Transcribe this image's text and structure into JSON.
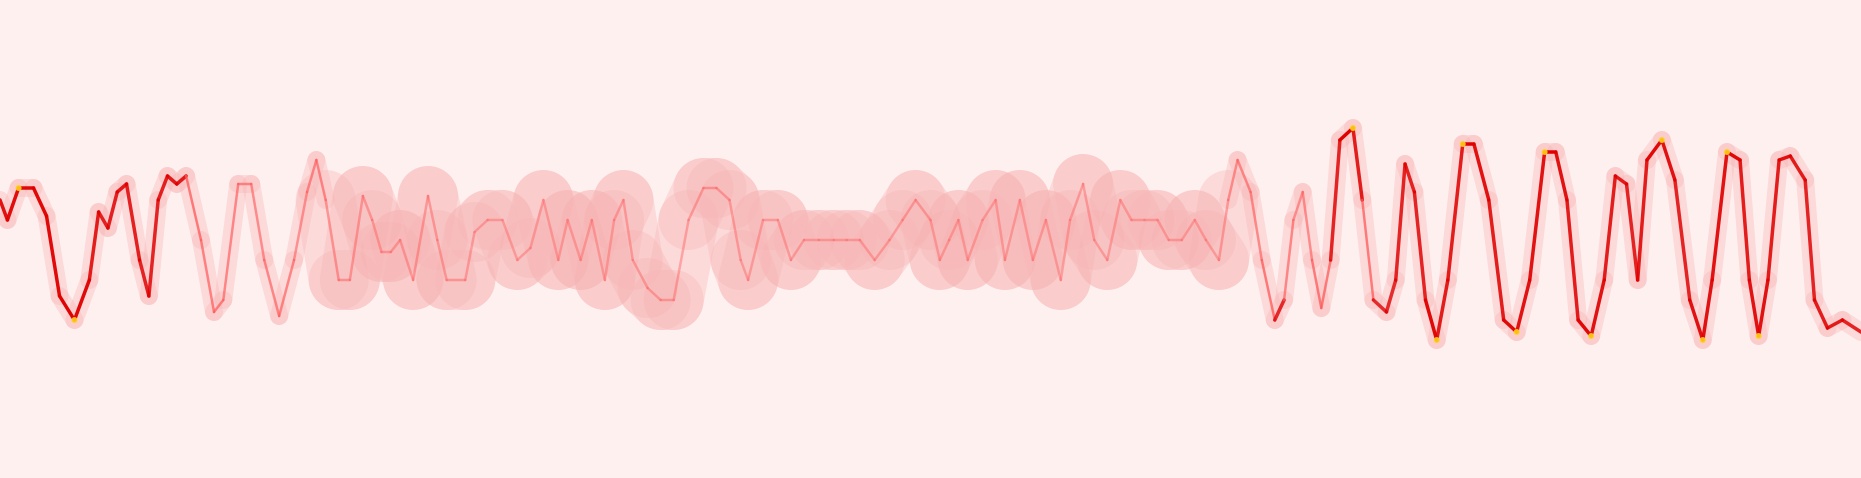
{
  "chart_data": {
    "type": "heatmap",
    "title": "",
    "xlabel": "",
    "ylabel": "",
    "axes": "none",
    "grid": false,
    "legend": "none",
    "colors": {
      "background": "#fff0f0",
      "faint": "#f7b3b3",
      "mid": "#ff5a5a",
      "strong": "#e00000",
      "peak": "#ffd21a"
    },
    "xlim": [
      0,
      1
    ],
    "ylim": [
      0,
      1
    ],
    "trace": [
      [
        0.0,
        0.6,
        0.9
      ],
      [
        0.004,
        0.55,
        0.9
      ],
      [
        0.01,
        0.63,
        0.95
      ],
      [
        0.018,
        0.63,
        0.95
      ],
      [
        0.025,
        0.56,
        0.95
      ],
      [
        0.032,
        0.36,
        0.95
      ],
      [
        0.04,
        0.3,
        1.0
      ],
      [
        0.048,
        0.4,
        0.9
      ],
      [
        0.053,
        0.57,
        0.8
      ],
      [
        0.058,
        0.53,
        0.8
      ],
      [
        0.063,
        0.62,
        0.85
      ],
      [
        0.068,
        0.64,
        0.85
      ],
      [
        0.075,
        0.45,
        0.8
      ],
      [
        0.08,
        0.36,
        0.8
      ],
      [
        0.085,
        0.6,
        0.8
      ],
      [
        0.09,
        0.66,
        0.85
      ],
      [
        0.095,
        0.64,
        0.85
      ],
      [
        0.1,
        0.66,
        0.85
      ],
      [
        0.108,
        0.5,
        0.6
      ],
      [
        0.115,
        0.32,
        0.7
      ],
      [
        0.12,
        0.35,
        0.6
      ],
      [
        0.128,
        0.64,
        0.6
      ],
      [
        0.135,
        0.64,
        0.6
      ],
      [
        0.142,
        0.45,
        0.5
      ],
      [
        0.15,
        0.31,
        0.7
      ],
      [
        0.158,
        0.45,
        0.5
      ],
      [
        0.165,
        0.62,
        0.5
      ],
      [
        0.17,
        0.7,
        0.7
      ],
      [
        0.175,
        0.6,
        0.5
      ],
      [
        0.182,
        0.4,
        0.4
      ],
      [
        0.188,
        0.4,
        0.4
      ],
      [
        0.195,
        0.61,
        0.4
      ],
      [
        0.2,
        0.55,
        0.35
      ],
      [
        0.205,
        0.47,
        0.35
      ],
      [
        0.21,
        0.47,
        0.35
      ],
      [
        0.215,
        0.5,
        0.35
      ],
      [
        0.222,
        0.4,
        0.35
      ],
      [
        0.23,
        0.61,
        0.4
      ],
      [
        0.235,
        0.5,
        0.35
      ],
      [
        0.24,
        0.4,
        0.35
      ],
      [
        0.25,
        0.4,
        0.35
      ],
      [
        0.255,
        0.52,
        0.3
      ],
      [
        0.262,
        0.55,
        0.3
      ],
      [
        0.27,
        0.55,
        0.3
      ],
      [
        0.278,
        0.45,
        0.3
      ],
      [
        0.285,
        0.48,
        0.3
      ],
      [
        0.292,
        0.6,
        0.3
      ],
      [
        0.3,
        0.45,
        0.3
      ],
      [
        0.305,
        0.55,
        0.3
      ],
      [
        0.312,
        0.45,
        0.3
      ],
      [
        0.318,
        0.55,
        0.3
      ],
      [
        0.325,
        0.4,
        0.3
      ],
      [
        0.33,
        0.55,
        0.3
      ],
      [
        0.335,
        0.6,
        0.35
      ],
      [
        0.34,
        0.45,
        0.3
      ],
      [
        0.348,
        0.38,
        0.35
      ],
      [
        0.355,
        0.35,
        0.35
      ],
      [
        0.362,
        0.35,
        0.35
      ],
      [
        0.37,
        0.55,
        0.3
      ],
      [
        0.378,
        0.63,
        0.4
      ],
      [
        0.385,
        0.63,
        0.4
      ],
      [
        0.392,
        0.6,
        0.35
      ],
      [
        0.398,
        0.45,
        0.3
      ],
      [
        0.402,
        0.4,
        0.3
      ],
      [
        0.41,
        0.55,
        0.3
      ],
      [
        0.418,
        0.55,
        0.3
      ],
      [
        0.425,
        0.45,
        0.3
      ],
      [
        0.432,
        0.5,
        0.3
      ],
      [
        0.44,
        0.5,
        0.3
      ],
      [
        0.448,
        0.5,
        0.3
      ],
      [
        0.455,
        0.5,
        0.3
      ],
      [
        0.462,
        0.5,
        0.3
      ],
      [
        0.47,
        0.45,
        0.3
      ],
      [
        0.478,
        0.5,
        0.3
      ],
      [
        0.485,
        0.55,
        0.3
      ],
      [
        0.492,
        0.6,
        0.4
      ],
      [
        0.5,
        0.55,
        0.3
      ],
      [
        0.505,
        0.45,
        0.3
      ],
      [
        0.51,
        0.5,
        0.3
      ],
      [
        0.515,
        0.55,
        0.3
      ],
      [
        0.52,
        0.45,
        0.3
      ],
      [
        0.528,
        0.55,
        0.3
      ],
      [
        0.535,
        0.6,
        0.3
      ],
      [
        0.54,
        0.45,
        0.3
      ],
      [
        0.548,
        0.6,
        0.3
      ],
      [
        0.555,
        0.45,
        0.3
      ],
      [
        0.562,
        0.55,
        0.3
      ],
      [
        0.57,
        0.4,
        0.3
      ],
      [
        0.575,
        0.55,
        0.3
      ],
      [
        0.582,
        0.64,
        0.35
      ],
      [
        0.588,
        0.5,
        0.3
      ],
      [
        0.595,
        0.45,
        0.3
      ],
      [
        0.602,
        0.6,
        0.3
      ],
      [
        0.608,
        0.55,
        0.3
      ],
      [
        0.615,
        0.55,
        0.3
      ],
      [
        0.622,
        0.55,
        0.3
      ],
      [
        0.628,
        0.5,
        0.3
      ],
      [
        0.635,
        0.5,
        0.3
      ],
      [
        0.642,
        0.55,
        0.3
      ],
      [
        0.648,
        0.5,
        0.3
      ],
      [
        0.655,
        0.45,
        0.3
      ],
      [
        0.66,
        0.6,
        0.45
      ],
      [
        0.665,
        0.7,
        0.6
      ],
      [
        0.672,
        0.62,
        0.55
      ],
      [
        0.678,
        0.45,
        0.6
      ],
      [
        0.685,
        0.3,
        0.85
      ],
      [
        0.69,
        0.35,
        0.7
      ],
      [
        0.695,
        0.55,
        0.5
      ],
      [
        0.7,
        0.62,
        0.5
      ],
      [
        0.705,
        0.45,
        0.6
      ],
      [
        0.71,
        0.33,
        0.8
      ],
      [
        0.715,
        0.45,
        0.6
      ],
      [
        0.72,
        0.75,
        1.0
      ],
      [
        0.727,
        0.78,
        1.0
      ],
      [
        0.732,
        0.6,
        0.7
      ],
      [
        0.738,
        0.35,
        0.7
      ],
      [
        0.745,
        0.32,
        0.8
      ],
      [
        0.75,
        0.4,
        0.7
      ],
      [
        0.755,
        0.69,
        0.9
      ],
      [
        0.76,
        0.62,
        0.7
      ],
      [
        0.766,
        0.35,
        0.9
      ],
      [
        0.772,
        0.25,
        1.0
      ],
      [
        0.778,
        0.4,
        0.7
      ],
      [
        0.786,
        0.74,
        1.0
      ],
      [
        0.792,
        0.74,
        1.0
      ],
      [
        0.8,
        0.6,
        0.8
      ],
      [
        0.808,
        0.3,
        0.9
      ],
      [
        0.815,
        0.27,
        1.0
      ],
      [
        0.822,
        0.4,
        0.8
      ],
      [
        0.83,
        0.72,
        1.0
      ],
      [
        0.836,
        0.72,
        1.0
      ],
      [
        0.842,
        0.6,
        0.8
      ],
      [
        0.848,
        0.3,
        0.9
      ],
      [
        0.855,
        0.26,
        1.0
      ],
      [
        0.862,
        0.4,
        0.8
      ],
      [
        0.868,
        0.66,
        0.9
      ],
      [
        0.874,
        0.64,
        0.8
      ],
      [
        0.88,
        0.4,
        0.8
      ],
      [
        0.885,
        0.7,
        0.9
      ],
      [
        0.893,
        0.75,
        1.0
      ],
      [
        0.9,
        0.65,
        0.8
      ],
      [
        0.908,
        0.35,
        0.8
      ],
      [
        0.915,
        0.25,
        1.0
      ],
      [
        0.92,
        0.4,
        0.8
      ],
      [
        0.928,
        0.72,
        1.0
      ],
      [
        0.935,
        0.7,
        0.9
      ],
      [
        0.94,
        0.4,
        0.8
      ],
      [
        0.945,
        0.26,
        1.0
      ],
      [
        0.95,
        0.4,
        0.8
      ],
      [
        0.956,
        0.7,
        0.9
      ],
      [
        0.962,
        0.71,
        0.9
      ],
      [
        0.97,
        0.65,
        0.8
      ],
      [
        0.975,
        0.35,
        0.8
      ],
      [
        0.982,
        0.28,
        0.9
      ],
      [
        0.99,
        0.3,
        0.8
      ],
      [
        1.0,
        0.27,
        0.8
      ]
    ]
  }
}
